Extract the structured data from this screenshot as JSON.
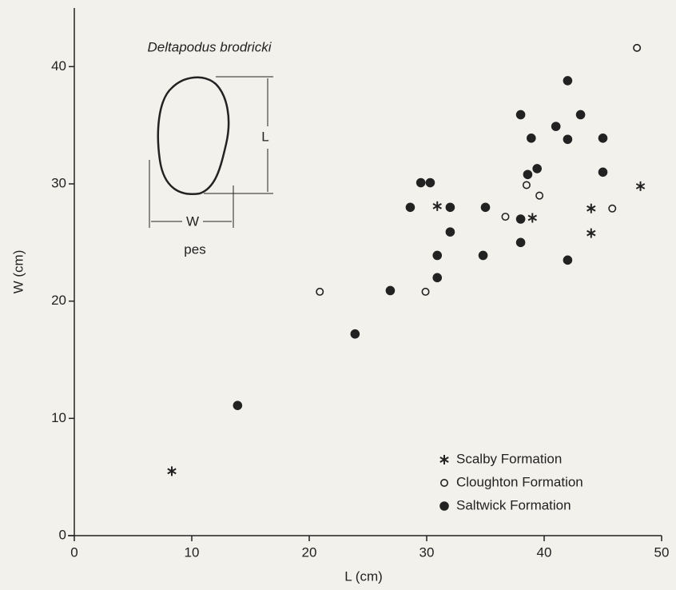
{
  "chart_data": {
    "type": "scatter",
    "x_label": "L (cm)",
    "y_label": "W (cm)",
    "xlim": [
      0,
      50
    ],
    "ylim": [
      0,
      45
    ],
    "xticks": [
      0,
      10,
      20,
      30,
      40,
      50
    ],
    "yticks": [
      0,
      10,
      20,
      30,
      40
    ],
    "legend": "lower right",
    "annotations": [
      "Deltapodus brodricki",
      "L",
      "W",
      "pes"
    ],
    "series": [
      {
        "name": "Scalby Formation",
        "marker": "asterisk",
        "color": "#222222",
        "x": [
          8.3,
          30.9,
          39.0,
          44.0,
          44.0,
          48.2
        ],
        "values": [
          5.5,
          28.1,
          27.1,
          27.9,
          25.8,
          29.8
        ]
      },
      {
        "name": "Cloughton Formation",
        "marker": "open",
        "color": "#222222",
        "x": [
          47.9,
          20.9,
          29.9,
          38.5,
          39.6,
          36.7,
          45.8
        ],
        "values": [
          41.6,
          20.8,
          20.8,
          29.9,
          29.0,
          27.2,
          27.9
        ]
      },
      {
        "name": "Saltwick Formation",
        "marker": "filled",
        "color": "#222222",
        "x": [
          13.9,
          23.9,
          26.9,
          28.6,
          29.5,
          30.3,
          30.9,
          30.9,
          32.0,
          32.0,
          34.8,
          35.0,
          38.0,
          38.0,
          38.0,
          38.6,
          38.9,
          39.4,
          41.0,
          42.0,
          42.0,
          42.0,
          43.1,
          45.0,
          45.0
        ],
        "values": [
          11.1,
          17.2,
          20.9,
          28.0,
          30.1,
          30.1,
          23.9,
          22.0,
          28.0,
          25.9,
          23.9,
          28.0,
          35.9,
          27.0,
          25.0,
          30.8,
          33.9,
          31.3,
          34.9,
          38.8,
          33.8,
          23.5,
          35.9,
          33.9,
          31.0
        ]
      }
    ]
  }
}
